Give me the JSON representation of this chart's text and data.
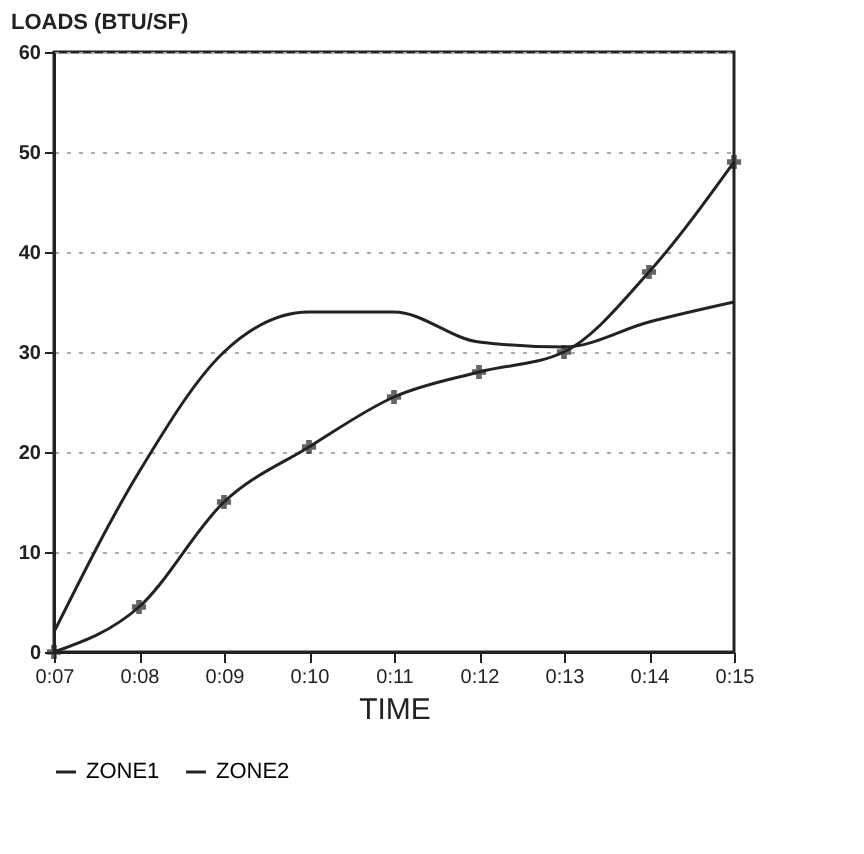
{
  "chart_data": {
    "type": "line",
    "ylabel": "LOADS (BTU/SF)",
    "xlabel": "TIME",
    "categories": [
      "0:07",
      "0:08",
      "0:09",
      "0:10",
      "0:11",
      "0:12",
      "0:13",
      "0:14",
      "0:15"
    ],
    "series": [
      {
        "name": "ZONE1",
        "color": "#222222",
        "marker": "none",
        "values": [
          2,
          18,
          30,
          34,
          34,
          31,
          30.5,
          33,
          35
        ]
      },
      {
        "name": "ZONE2",
        "color": "#222222",
        "marker": "cross",
        "values": [
          0,
          4.5,
          15,
          20.5,
          25.5,
          28,
          30,
          38,
          49
        ]
      }
    ],
    "ylim": [
      0,
      60
    ],
    "yticks": [
      0,
      10,
      20,
      30,
      40,
      50,
      60
    ],
    "grid": "y",
    "legend": "bottom"
  }
}
